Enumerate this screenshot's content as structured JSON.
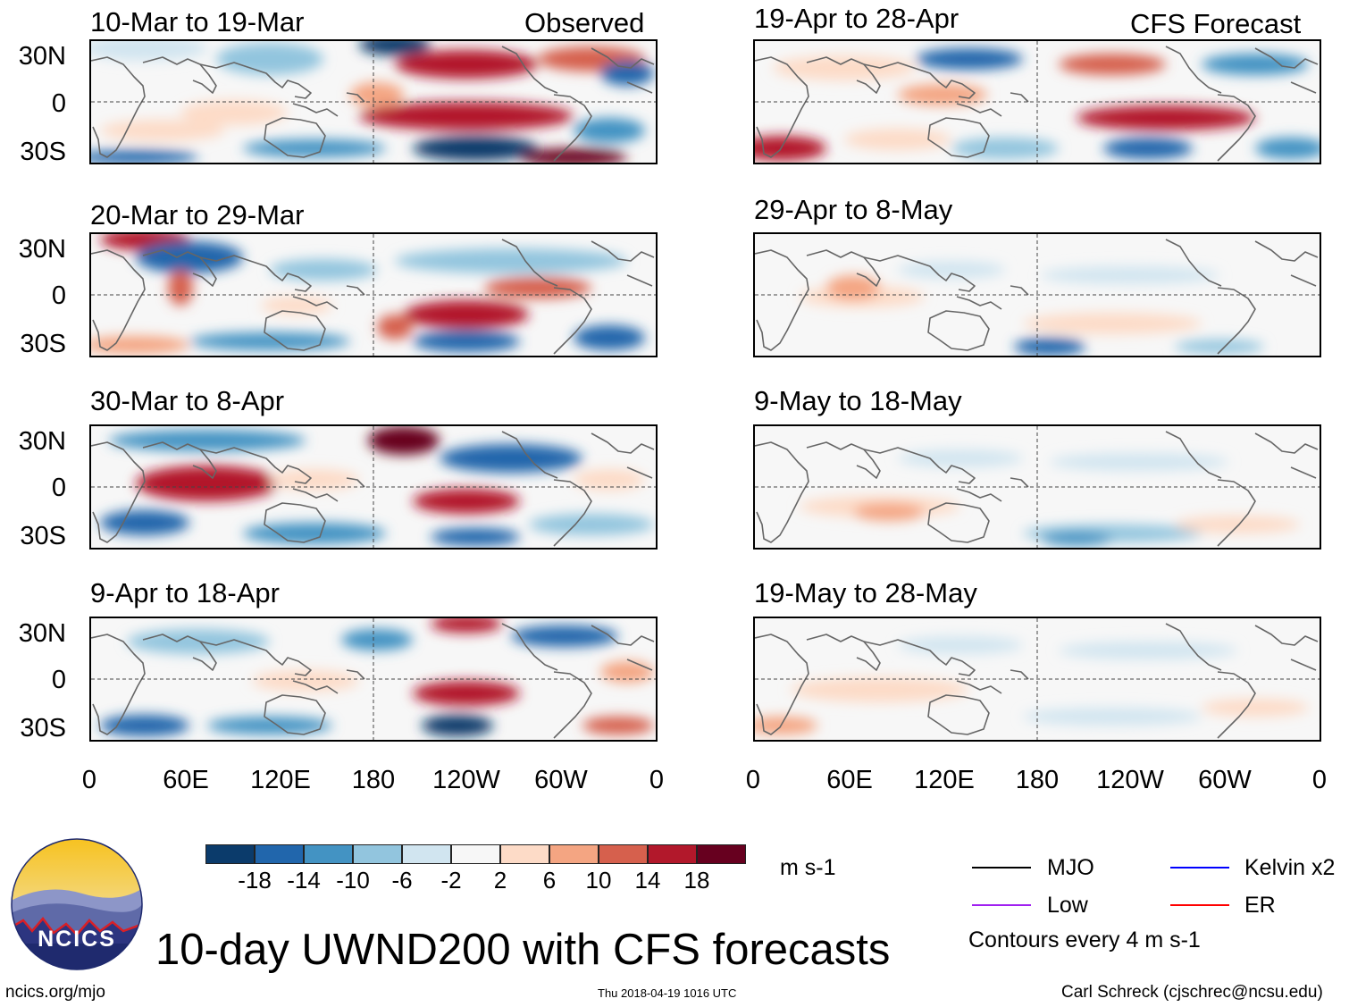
{
  "header_labels": {
    "observed": "Observed",
    "forecast": "CFS Forecast"
  },
  "panels_left": [
    {
      "title": "10-Mar to 19-Mar"
    },
    {
      "title": "20-Mar to 29-Mar"
    },
    {
      "title": "30-Mar to 8-Apr"
    },
    {
      "title": "9-Apr to 18-Apr"
    }
  ],
  "panels_right": [
    {
      "title": "19-Apr to 28-Apr"
    },
    {
      "title": "29-Apr to 8-May"
    },
    {
      "title": "9-May to 18-May"
    },
    {
      "title": "19-May to 28-May"
    }
  ],
  "lat_labels": [
    "30N",
    "0",
    "30S"
  ],
  "lon_labels": [
    "0",
    "60E",
    "120E",
    "180",
    "120W",
    "60W",
    "0"
  ],
  "colorbar": {
    "colors": [
      "#0b3b6b",
      "#2166ac",
      "#4393c3",
      "#92c5de",
      "#d1e5f0",
      "#f7f7f7",
      "#fddbc7",
      "#f4a582",
      "#d6604d",
      "#b2182b",
      "#67001f"
    ],
    "tick_labels": [
      "-18",
      "-14",
      "-10",
      "-6",
      "-2",
      "2",
      "6",
      "10",
      "14",
      "18"
    ],
    "units": "m s-1"
  },
  "legend": [
    {
      "label": "MJO",
      "color": "#000000"
    },
    {
      "label": "Kelvin x2",
      "color": "#0000ff"
    },
    {
      "label": "Low",
      "color": "#a020f0"
    },
    {
      "label": "ER",
      "color": "#ff0000"
    }
  ],
  "contours_note": "Contours every 4 m s-1",
  "main_title": "10-day UWND200 with CFS forecasts",
  "logo_text": "NCICS",
  "footer": {
    "url": "ncics.org/mjo",
    "timestamp": "Thu 2018-04-19 1016 UTC",
    "credit": "Carl Schreck (cjschrec@ncsu.edu)"
  }
}
